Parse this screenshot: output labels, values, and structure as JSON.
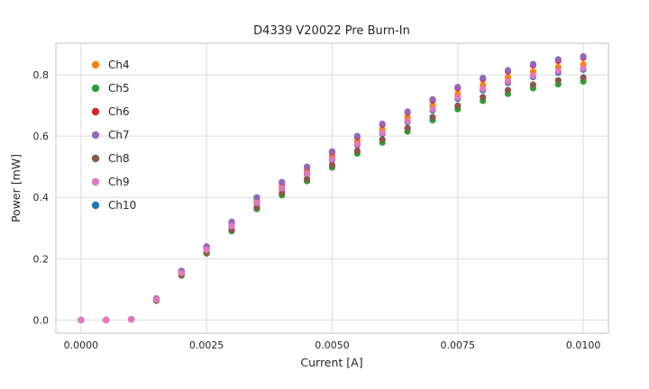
{
  "styles": {
    "background": "#ffffff",
    "grid_color": "#dcdcdc",
    "spine_color": "#cccccc",
    "text_color": "#262626"
  },
  "chart_data": {
    "type": "scatter",
    "title": "D4339 V20022 Pre Burn-In",
    "xlabel": "Current [A]",
    "ylabel": "Power [mW]",
    "xlim": [
      -0.0005,
      0.0105
    ],
    "ylim": [
      -0.043,
      0.903
    ],
    "grid": true,
    "legend_position": "upper-left",
    "x_ticks": [
      0.0,
      0.0025,
      0.005,
      0.0075,
      0.01
    ],
    "x_tick_labels": [
      "0.0000",
      "0.0025",
      "0.0050",
      "0.0075",
      "0.0100"
    ],
    "y_ticks": [
      0.0,
      0.2,
      0.4,
      0.6,
      0.8
    ],
    "y_tick_labels": [
      "0.0",
      "0.2",
      "0.4",
      "0.6",
      "0.8"
    ],
    "x": [
      0.0,
      0.0005,
      0.001,
      0.0015,
      0.002,
      0.0025,
      0.003,
      0.0035,
      0.004,
      0.0045,
      0.005,
      0.0055,
      0.006,
      0.0065,
      0.007,
      0.0075,
      0.008,
      0.0085,
      0.009,
      0.0095,
      0.01
    ],
    "series": [
      {
        "name": "Ch4",
        "color": "#ff7f0e",
        "values": [
          0,
          0,
          0.002,
          0.068,
          0.155,
          0.233,
          0.31,
          0.388,
          0.437,
          0.485,
          0.534,
          0.582,
          0.621,
          0.66,
          0.698,
          0.737,
          0.766,
          0.791,
          0.81,
          0.825,
          0.834
        ]
      },
      {
        "name": "Ch5",
        "color": "#2ca02c",
        "values": [
          0,
          0,
          0.002,
          0.063,
          0.145,
          0.217,
          0.29,
          0.362,
          0.407,
          0.453,
          0.498,
          0.543,
          0.579,
          0.615,
          0.652,
          0.688,
          0.715,
          0.738,
          0.756,
          0.769,
          0.778
        ]
      },
      {
        "name": "Ch6",
        "color": "#d62728",
        "values": [
          0,
          0,
          0.002,
          0.07,
          0.159,
          0.239,
          0.318,
          0.398,
          0.448,
          0.498,
          0.547,
          0.597,
          0.637,
          0.677,
          0.716,
          0.756,
          0.786,
          0.811,
          0.831,
          0.846,
          0.856
        ]
      },
      {
        "name": "Ch7",
        "color": "#9467bd",
        "values": [
          0,
          0,
          0.002,
          0.07,
          0.16,
          0.24,
          0.32,
          0.4,
          0.45,
          0.5,
          0.55,
          0.6,
          0.64,
          0.68,
          0.72,
          0.76,
          0.79,
          0.815,
          0.835,
          0.85,
          0.86
        ]
      },
      {
        "name": "Ch8",
        "color": "#8c564b",
        "values": [
          0,
          0,
          0.002,
          0.064,
          0.147,
          0.221,
          0.294,
          0.368,
          0.414,
          0.46,
          0.506,
          0.552,
          0.589,
          0.626,
          0.662,
          0.699,
          0.727,
          0.75,
          0.768,
          0.782,
          0.791
        ]
      },
      {
        "name": "Ch9",
        "color": "#e377c2",
        "values": [
          0,
          0,
          0.002,
          0.067,
          0.153,
          0.229,
          0.306,
          0.382,
          0.43,
          0.478,
          0.525,
          0.573,
          0.611,
          0.649,
          0.688,
          0.726,
          0.754,
          0.778,
          0.797,
          0.812,
          0.821
        ]
      },
      {
        "name": "Ch10",
        "color": "#1f77b4",
        "values": [
          0,
          0,
          0.002,
          0.066,
          0.152,
          0.228,
          0.304,
          0.38,
          0.427,
          0.475,
          0.522,
          0.57,
          0.608,
          0.646,
          0.684,
          0.722,
          0.75,
          0.774,
          0.793,
          0.807,
          0.817
        ]
      }
    ],
    "draw_order": [
      "Ch10",
      "Ch4",
      "Ch5",
      "Ch6",
      "Ch7",
      "Ch8",
      "Ch9"
    ]
  }
}
